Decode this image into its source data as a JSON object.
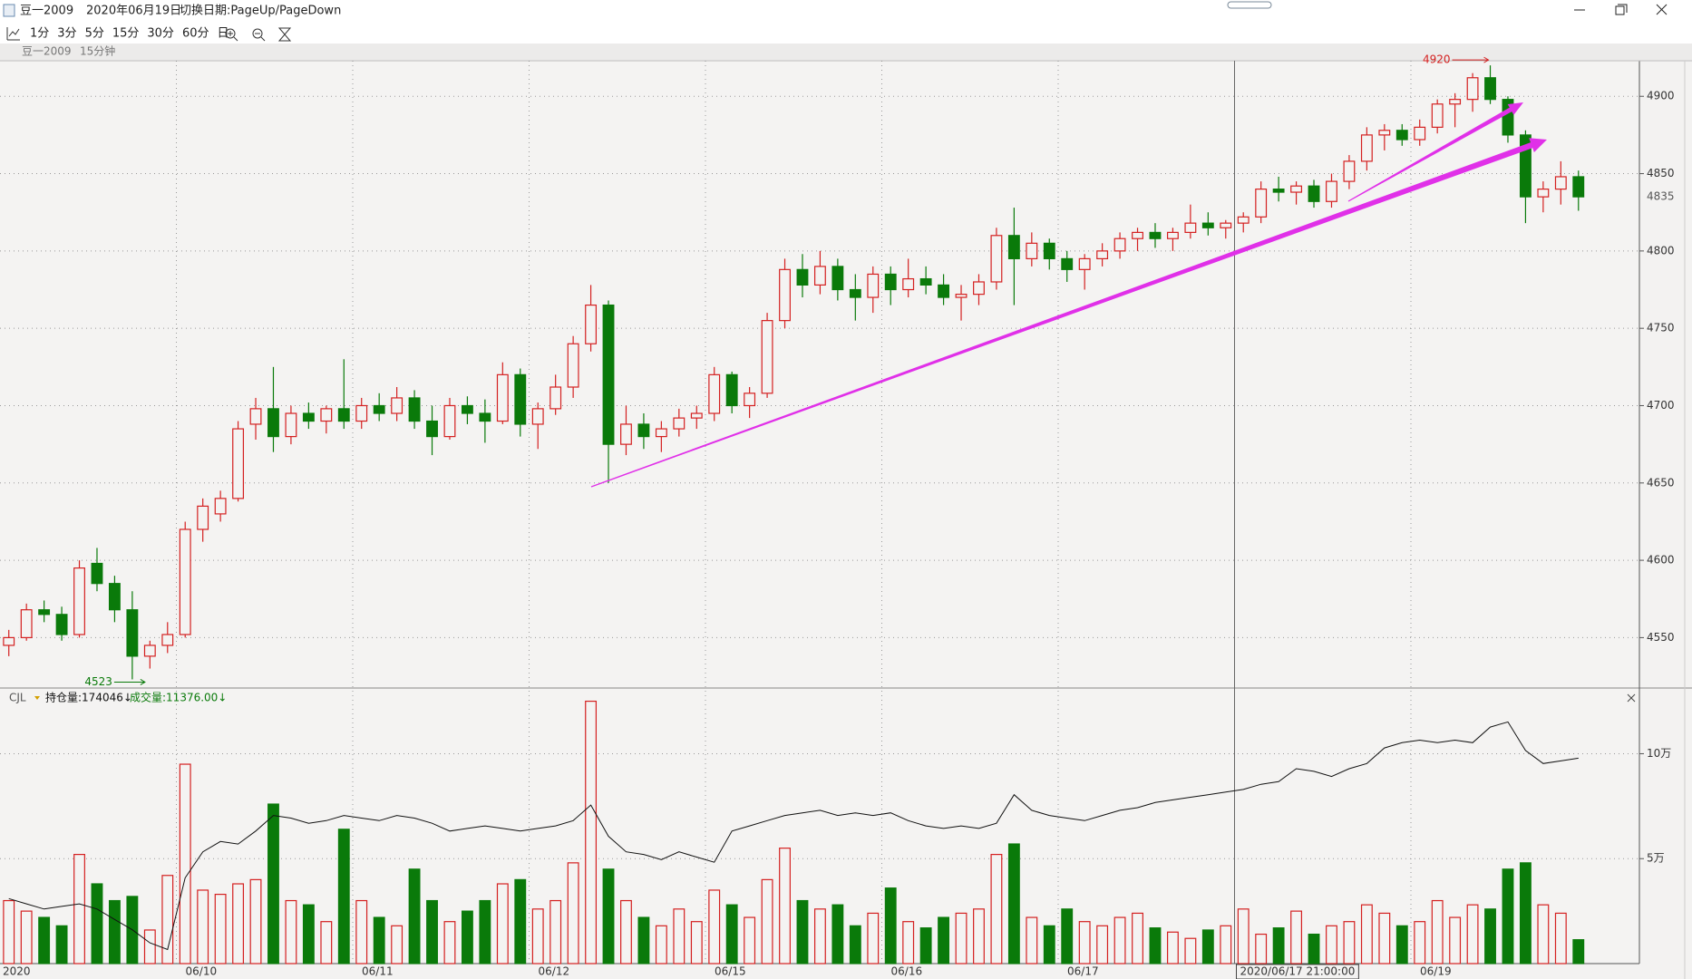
{
  "window": {
    "title": "豆一2009",
    "date": "2020年06月19日",
    "hint": "切换日期:PageUp/PageDown"
  },
  "toolbar": {
    "periods": [
      "1分",
      "3分",
      "5分",
      "15分",
      "30分",
      "60分",
      "日"
    ]
  },
  "chart_data": [
    {
      "type": "candlestick",
      "title": "豆一2009",
      "subtitle": "15分钟",
      "categories": [
        "2020",
        null,
        null,
        null,
        null,
        null,
        null,
        null,
        null,
        null,
        "06/10",
        null,
        null,
        null,
        null,
        null,
        null,
        null,
        null,
        null,
        "06/11",
        null,
        null,
        null,
        null,
        null,
        null,
        null,
        null,
        null,
        "06/12",
        null,
        null,
        null,
        null,
        null,
        null,
        null,
        null,
        null,
        "06/15",
        null,
        null,
        null,
        null,
        null,
        null,
        null,
        null,
        null,
        "06/16",
        null,
        null,
        null,
        null,
        null,
        null,
        null,
        null,
        null,
        "06/17",
        null,
        null,
        null,
        null,
        null,
        null,
        null,
        null,
        null,
        "2020/06/17 21:00:00",
        null,
        null,
        null,
        null,
        null,
        null,
        null,
        null,
        null,
        "06/19",
        null,
        null,
        null,
        null,
        null,
        null,
        null,
        null,
        null
      ],
      "values": [
        [
          4545,
          4555,
          4538,
          4550
        ],
        [
          4550,
          4572,
          4548,
          4568
        ],
        [
          4568,
          4574,
          4560,
          4565
        ],
        [
          4565,
          4570,
          4548,
          4552
        ],
        [
          4552,
          4600,
          4550,
          4595
        ],
        [
          4598,
          4608,
          4580,
          4585
        ],
        [
          4585,
          4590,
          4560,
          4568
        ],
        [
          4568,
          4580,
          4523,
          4538
        ],
        [
          4538,
          4548,
          4530,
          4545
        ],
        [
          4545,
          4560,
          4540,
          4552
        ],
        [
          4552,
          4625,
          4550,
          4620
        ],
        [
          4620,
          4640,
          4612,
          4635
        ],
        [
          4630,
          4645,
          4625,
          4640
        ],
        [
          4640,
          4690,
          4638,
          4685
        ],
        [
          4688,
          4705,
          4678,
          4698
        ],
        [
          4698,
          4725,
          4670,
          4680
        ],
        [
          4680,
          4700,
          4675,
          4695
        ],
        [
          4695,
          4702,
          4685,
          4690
        ],
        [
          4690,
          4700,
          4682,
          4698
        ],
        [
          4698,
          4730,
          4685,
          4690
        ],
        [
          4690,
          4705,
          4685,
          4700
        ],
        [
          4700,
          4708,
          4690,
          4695
        ],
        [
          4695,
          4712,
          4690,
          4705
        ],
        [
          4705,
          4710,
          4685,
          4690
        ],
        [
          4690,
          4700,
          4668,
          4680
        ],
        [
          4680,
          4705,
          4678,
          4700
        ],
        [
          4700,
          4706,
          4688,
          4695
        ],
        [
          4695,
          4704,
          4676,
          4690
        ],
        [
          4690,
          4728,
          4688,
          4720
        ],
        [
          4720,
          4724,
          4680,
          4688
        ],
        [
          4688,
          4702,
          4672,
          4698
        ],
        [
          4698,
          4720,
          4694,
          4712
        ],
        [
          4712,
          4745,
          4705,
          4740
        ],
        [
          4740,
          4778,
          4735,
          4765
        ],
        [
          4765,
          4768,
          4650,
          4675
        ],
        [
          4675,
          4700,
          4668,
          4688
        ],
        [
          4688,
          4695,
          4672,
          4680
        ],
        [
          4680,
          4690,
          4670,
          4685
        ],
        [
          4685,
          4698,
          4680,
          4692
        ],
        [
          4692,
          4700,
          4685,
          4695
        ],
        [
          4695,
          4725,
          4690,
          4720
        ],
        [
          4720,
          4722,
          4695,
          4700
        ],
        [
          4700,
          4712,
          4692,
          4708
        ],
        [
          4708,
          4760,
          4705,
          4755
        ],
        [
          4755,
          4795,
          4750,
          4788
        ],
        [
          4788,
          4798,
          4770,
          4778
        ],
        [
          4778,
          4800,
          4772,
          4790
        ],
        [
          4790,
          4795,
          4768,
          4775
        ],
        [
          4775,
          4785,
          4755,
          4770
        ],
        [
          4770,
          4790,
          4760,
          4785
        ],
        [
          4785,
          4790,
          4765,
          4775
        ],
        [
          4775,
          4795,
          4770,
          4782
        ],
        [
          4782,
          4790,
          4772,
          4778
        ],
        [
          4778,
          4785,
          4765,
          4770
        ],
        [
          4770,
          4778,
          4755,
          4772
        ],
        [
          4772,
          4785,
          4765,
          4780
        ],
        [
          4780,
          4815,
          4775,
          4810
        ],
        [
          4810,
          4828,
          4765,
          4795
        ],
        [
          4795,
          4812,
          4790,
          4805
        ],
        [
          4805,
          4808,
          4788,
          4795
        ],
        [
          4795,
          4800,
          4780,
          4788
        ],
        [
          4788,
          4798,
          4775,
          4795
        ],
        [
          4795,
          4805,
          4790,
          4800
        ],
        [
          4800,
          4812,
          4795,
          4808
        ],
        [
          4808,
          4815,
          4800,
          4812
        ],
        [
          4812,
          4818,
          4802,
          4808
        ],
        [
          4808,
          4815,
          4800,
          4812
        ],
        [
          4812,
          4830,
          4808,
          4818
        ],
        [
          4818,
          4825,
          4810,
          4815
        ],
        [
          4815,
          4820,
          4808,
          4818
        ],
        [
          4818,
          4825,
          4812,
          4822
        ],
        [
          4822,
          4845,
          4818,
          4840
        ],
        [
          4840,
          4848,
          4832,
          4838
        ],
        [
          4838,
          4845,
          4830,
          4842
        ],
        [
          4842,
          4846,
          4828,
          4832
        ],
        [
          4832,
          4850,
          4828,
          4845
        ],
        [
          4845,
          4862,
          4840,
          4858
        ],
        [
          4858,
          4880,
          4852,
          4875
        ],
        [
          4875,
          4882,
          4865,
          4878
        ],
        [
          4878,
          4882,
          4868,
          4872
        ],
        [
          4872,
          4885,
          4868,
          4880
        ],
        [
          4880,
          4898,
          4876,
          4895
        ],
        [
          4895,
          4902,
          4880,
          4898
        ],
        [
          4898,
          4915,
          4890,
          4912
        ],
        [
          4912,
          4920,
          4895,
          4898
        ],
        [
          4898,
          4900,
          4870,
          4875
        ],
        [
          4875,
          4878,
          4818,
          4835
        ],
        [
          4835,
          4845,
          4825,
          4840
        ],
        [
          4840,
          4858,
          4830,
          4848
        ],
        [
          4848,
          4852,
          4826,
          4835
        ]
      ],
      "up_color": "#d42020",
      "down_color": "#0a7a0a",
      "ylim": [
        4518,
        4923
      ],
      "yticks": [
        4550,
        4600,
        4650,
        4700,
        4750,
        4800,
        4850,
        4900
      ],
      "grid": true,
      "high_mark": 4920,
      "low_mark": 4523,
      "last_price": 4835
    },
    {
      "type": "volume",
      "title": "CJL",
      "readouts": [
        "持仓量:174046↓",
        "成交量:11376.00↓"
      ],
      "series": [
        {
          "values": [
            30000,
            25000,
            22000,
            18000,
            52000,
            38000,
            30000,
            32000,
            16000,
            42000,
            95000,
            35000,
            33000,
            38000,
            40000,
            76000,
            30000,
            28000,
            20000,
            64000,
            30000,
            22000,
            18000,
            45000,
            30000,
            20000,
            25000,
            30000,
            38000,
            40000,
            26000,
            30000,
            48000,
            125000,
            45000,
            30000,
            22000,
            18000,
            26000,
            20000,
            35000,
            28000,
            22000,
            40000,
            55000,
            30000,
            26000,
            28000,
            18000,
            24000,
            36000,
            20000,
            17000,
            22000,
            24000,
            26000,
            52000,
            57000,
            22000,
            18000,
            26000,
            20000,
            18000,
            22000,
            24000,
            17000,
            15000,
            12000,
            16000,
            18000,
            26000,
            14000,
            17000,
            25000,
            14000,
            18000,
            20000,
            28000,
            24000,
            18000,
            20000,
            30000,
            22000,
            28000,
            26000,
            45000,
            48000,
            28000,
            24000,
            11376
          ]
        },
        {
          "axis": "y2",
          "color": "#111111",
          "values": [
            120000,
            118000,
            116000,
            117000,
            118000,
            116000,
            112000,
            108000,
            103000,
            100400,
            128000,
            138000,
            142000,
            141000,
            146000,
            152000,
            151000,
            149000,
            150000,
            152000,
            151000,
            150000,
            152000,
            151000,
            149000,
            146000,
            147000,
            148000,
            147000,
            146000,
            147000,
            148000,
            150000,
            156000,
            144000,
            138000,
            137000,
            135000,
            138000,
            136000,
            134000,
            146000,
            148000,
            150000,
            152000,
            153000,
            154000,
            152000,
            153000,
            152000,
            153000,
            150000,
            148000,
            147000,
            148000,
            147000,
            149000,
            160000,
            154000,
            152000,
            151000,
            150000,
            152000,
            154000,
            155000,
            157000,
            158000,
            159000,
            160000,
            161000,
            162000,
            164000,
            165000,
            170000,
            169000,
            167000,
            170000,
            172000,
            178000,
            180000,
            181000,
            180000,
            181000,
            180000,
            186000,
            188000,
            177000,
            172000,
            173000,
            174046
          ]
        }
      ],
      "ylim": [
        0,
        130000
      ],
      "yticks": [
        {
          "value": 50000,
          "label": "5万"
        },
        {
          "value": 100000,
          "label": "10万"
        }
      ],
      "y2lim": [
        95000,
        200000
      ],
      "grid": true
    }
  ]
}
